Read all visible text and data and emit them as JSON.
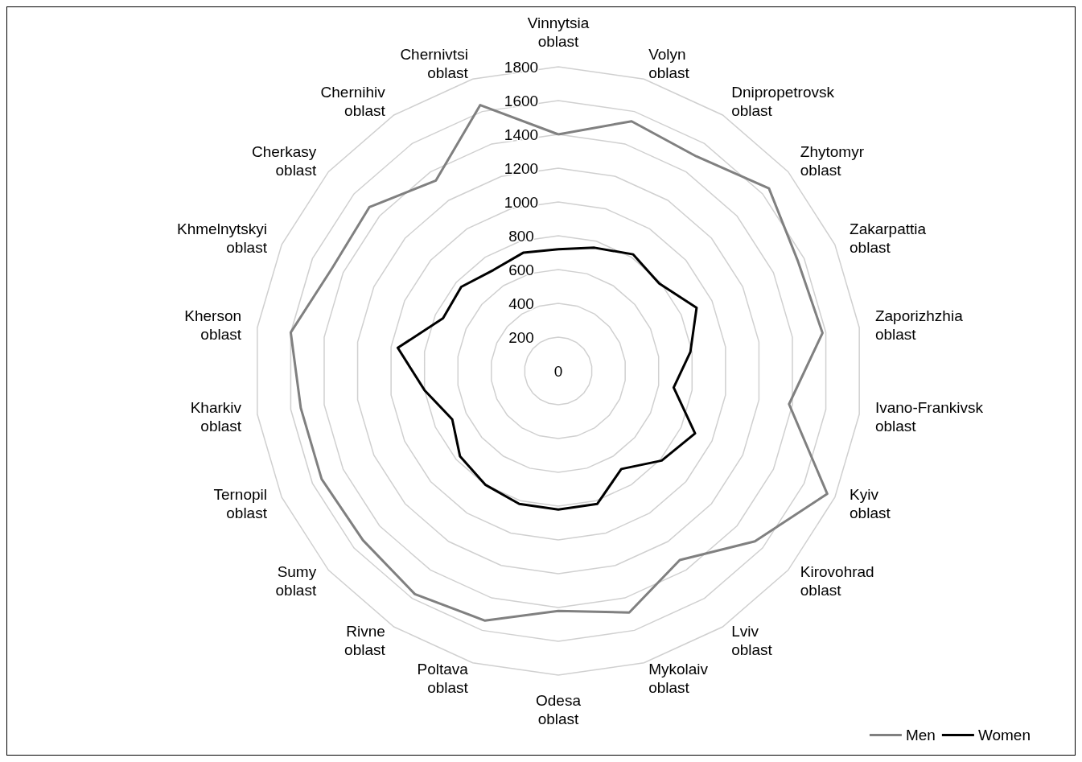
{
  "chart_data": {
    "type": "radar",
    "categories": [
      "Vinnytsia oblast",
      "Volyn oblast",
      "Dnipropetrovsk oblast",
      "Zhytomyr oblast",
      "Zakarpattia oblast",
      "Zaporizhzhia oblast",
      "Ivano-Frankivsk oblast",
      "Kyiv oblast",
      "Kirovohrad oblast",
      "Lviv oblast",
      "Mykolaiv oblast",
      "Odesa oblast",
      "Poltava oblast",
      "Rivne oblast",
      "Sumy oblast",
      "Ternopil oblast",
      "Kharkiv oblast",
      "Kherson oblast",
      "Khmelnytskyi oblast",
      "Cherkasy oblast",
      "Chernihiv oblast",
      "Chernivtsi oblast"
    ],
    "series": [
      {
        "name": "Men",
        "color": "#808080",
        "values": [
          1400,
          1540,
          1510,
          1650,
          1560,
          1580,
          1380,
          1750,
          1540,
          1330,
          1490,
          1420,
          1540,
          1570,
          1530,
          1540,
          1540,
          1600,
          1470,
          1480,
          1340,
          1640
        ]
      },
      {
        "name": "Women",
        "color": "#000000",
        "values": [
          720,
          760,
          820,
          790,
          900,
          790,
          690,
          890,
          810,
          690,
          820,
          820,
          820,
          800,
          770,
          690,
          800,
          960,
          750,
          760,
          710,
          730
        ]
      }
    ],
    "ylim": [
      0,
      1800
    ],
    "yticks": [
      0,
      200,
      400,
      600,
      800,
      1000,
      1200,
      1400,
      1600,
      1800
    ],
    "grid": true,
    "legend": "bottom right",
    "marker": "none",
    "line_style": "solid"
  }
}
